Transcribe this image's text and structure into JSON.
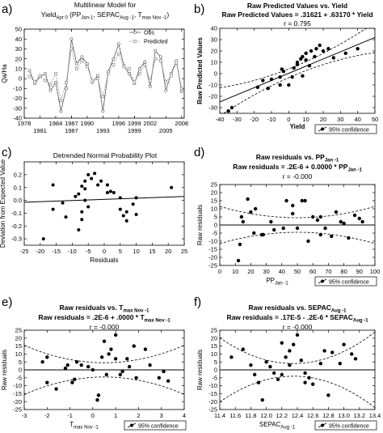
{
  "chart_data": [
    {
      "id": "a",
      "panel_letter": "a)",
      "type": "line",
      "title_line1": "Multilinear Model for",
      "title_line2": "Yield",
      "title_line2_sub": "Apr 0",
      "title_line2_rest_parts": [
        {
          "t": " (PP",
          "sub": false
        },
        {
          "t": "Jan-1",
          "sub": true
        },
        {
          "t": ", SEPAC",
          "sub": false
        },
        {
          "t": "Aug -1",
          "sub": true
        },
        {
          "t": ", T",
          "sub": false
        },
        {
          "t": "max Nov -1",
          "sub": true
        },
        {
          "t": ")",
          "sub": false
        }
      ],
      "ylabel": "Qa/Ha",
      "xlim": [
        1978,
        2008.5
      ],
      "ylim": [
        -40,
        50
      ],
      "yticks": [
        -40,
        -30,
        -20,
        -10,
        0,
        10,
        20,
        30,
        40,
        50
      ],
      "xticks_top_row": [
        1978,
        1984,
        1987,
        1990,
        1996,
        1999,
        2002,
        2008
      ],
      "xticks_bottom_row": [
        1981,
        1987,
        1993,
        1999,
        2005
      ],
      "legend": [
        {
          "label": "Obs",
          "marker": "circle"
        },
        {
          "label": "Predicted",
          "marker": "square"
        }
      ],
      "x": [
        1979,
        1980,
        1981,
        1982,
        1983,
        1984,
        1985,
        1986,
        1987,
        1988,
        1989,
        1990,
        1991,
        1992,
        1993,
        1994,
        1995,
        1996,
        1997,
        1998,
        1999,
        2000,
        2001,
        2002,
        2003,
        2004,
        2005,
        2006,
        2007,
        2008
      ],
      "series": [
        {
          "name": "Obs",
          "values": [
            8,
            -5,
            2,
            5,
            -12,
            -4,
            -33,
            -10,
            40,
            15,
            22,
            15,
            -4,
            3,
            -33,
            7,
            20,
            35,
            13,
            5,
            -5,
            10,
            17,
            -8,
            28,
            22,
            -12,
            5,
            18,
            -13
          ]
        },
        {
          "name": "Predicted",
          "values": [
            2,
            -3,
            3,
            -2,
            -6,
            5,
            -22,
            -4,
            30,
            10,
            18,
            12,
            -2,
            0,
            -18,
            5,
            14,
            25,
            12,
            10,
            -3,
            5,
            14,
            -2,
            20,
            18,
            -3,
            3,
            16,
            -10
          ]
        }
      ]
    },
    {
      "id": "b",
      "panel_letter": "b)",
      "type": "scatter",
      "title": "Raw Predicted Values  vs. Yield",
      "subtitle": "Raw Predicted Values = .31621 + .63170 * Yield",
      "stat": "r = 0.795",
      "xlabel": "Yield",
      "ylabel": "Raw Predicted Values",
      "xlim": [
        -40,
        50
      ],
      "ylim": [
        -35,
        40
      ],
      "xticks": [
        -40,
        -30,
        -20,
        -10,
        0,
        10,
        20,
        30,
        40,
        50
      ],
      "yticks": [
        -30,
        -20,
        -10,
        0,
        10,
        20,
        30,
        40
      ],
      "legend": "95% confidence",
      "fit": {
        "intercept": 0.31621,
        "slope": 0.6317,
        "ci_min": 3.8,
        "ci_slope": 0.0045
      },
      "points": [
        [
          -35,
          -33
        ],
        [
          -33,
          -30
        ],
        [
          -18,
          -12
        ],
        [
          -15,
          -6
        ],
        [
          -12,
          -13
        ],
        [
          -10,
          -5
        ],
        [
          -5,
          -10
        ],
        [
          -5,
          -3
        ],
        [
          -4,
          4
        ],
        [
          -3,
          2
        ],
        [
          0,
          -10
        ],
        [
          2,
          -3
        ],
        [
          3,
          5
        ],
        [
          5,
          8
        ],
        [
          5,
          10
        ],
        [
          7,
          13
        ],
        [
          8,
          -2
        ],
        [
          8,
          15
        ],
        [
          10,
          12
        ],
        [
          12,
          7
        ],
        [
          13,
          20
        ],
        [
          15,
          15
        ],
        [
          16,
          22
        ],
        [
          18,
          25
        ],
        [
          20,
          20
        ],
        [
          23,
          22
        ],
        [
          26,
          14
        ],
        [
          33,
          18
        ],
        [
          40,
          22
        ],
        [
          10,
          18
        ]
      ]
    },
    {
      "id": "c",
      "panel_letter": "c)",
      "type": "scatter",
      "title": "Detrended Normal Probability Plot",
      "xlabel": "Residuals",
      "ylabel": "Deviation from Expected Value",
      "xlim": [
        -25,
        25
      ],
      "ylim": [
        -0.35,
        0.3
      ],
      "xticks": [
        -25,
        -20,
        -15,
        -10,
        -5,
        0,
        5,
        10,
        15,
        20,
        25
      ],
      "yticks": [
        -0.3,
        -0.2,
        -0.1,
        0.0,
        0.1,
        0.2
      ],
      "ref_line": [
        [
          -25,
          -0.015
        ],
        [
          25,
          0.03
        ]
      ],
      "points": [
        [
          -19,
          -0.3
        ],
        [
          -16,
          0.12
        ],
        [
          -16,
          -0.07
        ],
        [
          -13,
          -0.02
        ],
        [
          -12,
          -0.13
        ],
        [
          -9,
          0.03
        ],
        [
          -8,
          0.05
        ],
        [
          -8,
          -0.23
        ],
        [
          -7,
          -0.15
        ],
        [
          -7,
          -0.09
        ],
        [
          -7,
          0.11
        ],
        [
          -6,
          0.09
        ],
        [
          -6,
          0.0
        ],
        [
          -6,
          0.15
        ],
        [
          -5,
          0.2
        ],
        [
          -5,
          -0.05
        ],
        [
          -4,
          0.17
        ],
        [
          -3,
          0.21
        ],
        [
          -2,
          0.12
        ],
        [
          -1,
          0.15
        ],
        [
          1,
          0.12
        ],
        [
          1,
          0.06
        ],
        [
          2,
          0.07
        ],
        [
          3,
          0.06
        ],
        [
          5,
          0.02
        ],
        [
          5,
          -0.07
        ],
        [
          6,
          -0.12
        ],
        [
          7,
          -0.16
        ],
        [
          7,
          -0.09
        ],
        [
          9,
          -0.03
        ],
        [
          10,
          -0.11
        ],
        [
          10,
          0.02
        ],
        [
          21,
          0.1
        ]
      ]
    },
    {
      "id": "d",
      "panel_letter": "d)",
      "type": "scatter",
      "title": "Raw residuals vs. PP",
      "title_sub": "Jan -1",
      "subtitle": "Raw residuals = .2E-6 + 0.0000 * PP",
      "subtitle_sub": "Jan -1",
      "stat": "r = -0.000",
      "xlabel": "PP",
      "xlabel_sub": "Jan -1",
      "ylabel": "Raw residuals",
      "xlim": [
        0,
        100
      ],
      "ylim": [
        -25,
        25
      ],
      "xticks": [
        0,
        10,
        20,
        30,
        40,
        50,
        60,
        70,
        80,
        90,
        100
      ],
      "yticks": [
        -25,
        -20,
        -15,
        -10,
        -5,
        0,
        5,
        10,
        15,
        20,
        25
      ],
      "legend": "95% confidence",
      "ci": {
        "center_x": 50,
        "half_min": 4.5,
        "k": 0.0028
      },
      "points": [
        [
          12,
          -22
        ],
        [
          13,
          -12
        ],
        [
          14,
          5
        ],
        [
          15,
          2
        ],
        [
          18,
          16
        ],
        [
          20,
          8
        ],
        [
          22,
          -5
        ],
        [
          23,
          10
        ],
        [
          27,
          -6
        ],
        [
          28,
          -6
        ],
        [
          33,
          2
        ],
        [
          35,
          -3
        ],
        [
          41,
          -2
        ],
        [
          43,
          15
        ],
        [
          47,
          12
        ],
        [
          47,
          7
        ],
        [
          50,
          -2
        ],
        [
          53,
          15
        ],
        [
          55,
          15
        ],
        [
          57,
          -10
        ],
        [
          60,
          5
        ],
        [
          63,
          3
        ],
        [
          65,
          -6
        ],
        [
          65,
          5
        ],
        [
          68,
          -2
        ],
        [
          72,
          -7
        ],
        [
          75,
          8
        ],
        [
          78,
          2
        ],
        [
          80,
          1
        ],
        [
          83,
          -8
        ],
        [
          87,
          6
        ],
        [
          90,
          4
        ],
        [
          92,
          2
        ]
      ]
    },
    {
      "id": "e",
      "panel_letter": "e)",
      "type": "scatter",
      "title": "Raw residuals vs. T",
      "title_sub": "max Nov -1",
      "subtitle": "Raw residuals = .2E-6 + .0000 * T",
      "subtitle_sub": "max Nov -1",
      "stat": "r = -0.000",
      "xlabel": "T",
      "xlabel_sub": "max Nov -1",
      "ylabel": "Raw residuals",
      "xlim": [
        -3,
        4
      ],
      "ylim": [
        -25,
        25
      ],
      "xticks": [
        -3,
        -2,
        -1,
        0,
        1,
        2,
        3,
        4
      ],
      "yticks": [
        -25,
        -20,
        -15,
        -10,
        -5,
        0,
        5,
        10,
        15,
        20,
        25
      ],
      "legend": "95% confidence",
      "ci": {
        "center_x": 0.5,
        "half_min": 4.5,
        "k": 0.9
      },
      "points": [
        [
          -2.2,
          5
        ],
        [
          -2.0,
          8
        ],
        [
          -2.0,
          -8
        ],
        [
          -1.2,
          1
        ],
        [
          -1.1,
          3
        ],
        [
          -0.9,
          -8
        ],
        [
          -0.8,
          -6
        ],
        [
          -0.7,
          5
        ],
        [
          -0.5,
          3
        ],
        [
          -0.2,
          2
        ],
        [
          0.0,
          0
        ],
        [
          0.2,
          -19
        ],
        [
          0.25,
          -16
        ],
        [
          0.4,
          8
        ],
        [
          0.5,
          18
        ],
        [
          0.6,
          -3
        ],
        [
          0.7,
          10
        ],
        [
          0.8,
          13
        ],
        [
          1.0,
          22
        ],
        [
          1.0,
          7
        ],
        [
          1.2,
          -3
        ],
        [
          1.3,
          -1
        ],
        [
          1.5,
          7
        ],
        [
          1.6,
          2
        ],
        [
          1.9,
          -5
        ],
        [
          2.3,
          13
        ],
        [
          2.5,
          3
        ],
        [
          2.9,
          -5
        ],
        [
          3.1,
          -1
        ],
        [
          3.3,
          -7
        ],
        [
          1.8,
          15
        ],
        [
          -1.6,
          -12
        ]
      ]
    },
    {
      "id": "f",
      "panel_letter": "f)",
      "type": "scatter",
      "title": "Raw residuals vs. SEPAC",
      "title_sub": "Aug -1",
      "subtitle": "Raw residuals = .17E-5 - .2E-6 * SEPAC",
      "subtitle_sub": "Aug -1",
      "stat": "r = -0.000",
      "xlabel": "SEPAC",
      "xlabel_sub": "Aug -1",
      "ylabel": "Raw residuals",
      "xlim": [
        11.4,
        13.4
      ],
      "ylim": [
        -25,
        25
      ],
      "xticks": [
        11.4,
        11.6,
        11.8,
        12.0,
        12.2,
        12.4,
        12.6,
        12.8,
        13.0,
        13.2,
        13.4
      ],
      "yticks": [
        -25,
        -20,
        -15,
        -10,
        -5,
        0,
        5,
        10,
        15,
        20,
        25
      ],
      "legend": "95% confidence",
      "ci": {
        "center_x": 12.35,
        "half_min": 4.0,
        "k": 18
      },
      "points": [
        [
          11.55,
          8
        ],
        [
          11.7,
          13
        ],
        [
          11.8,
          3
        ],
        [
          11.85,
          -3
        ],
        [
          11.9,
          -8
        ],
        [
          11.95,
          -19
        ],
        [
          12.0,
          5
        ],
        [
          12.05,
          2
        ],
        [
          12.1,
          -2
        ],
        [
          12.15,
          -6
        ],
        [
          12.2,
          17
        ],
        [
          12.2,
          -3
        ],
        [
          12.25,
          8
        ],
        [
          12.3,
          3
        ],
        [
          12.3,
          12
        ],
        [
          12.35,
          16
        ],
        [
          12.4,
          22
        ],
        [
          12.45,
          6
        ],
        [
          12.5,
          -2
        ],
        [
          12.5,
          -8
        ],
        [
          12.55,
          -5
        ],
        [
          12.6,
          -9
        ],
        [
          12.7,
          4
        ],
        [
          12.75,
          12
        ],
        [
          12.8,
          -16
        ],
        [
          12.95,
          4
        ],
        [
          13.0,
          16
        ],
        [
          13.1,
          10
        ],
        [
          13.15,
          7
        ],
        [
          12.85,
          11
        ]
      ]
    }
  ]
}
